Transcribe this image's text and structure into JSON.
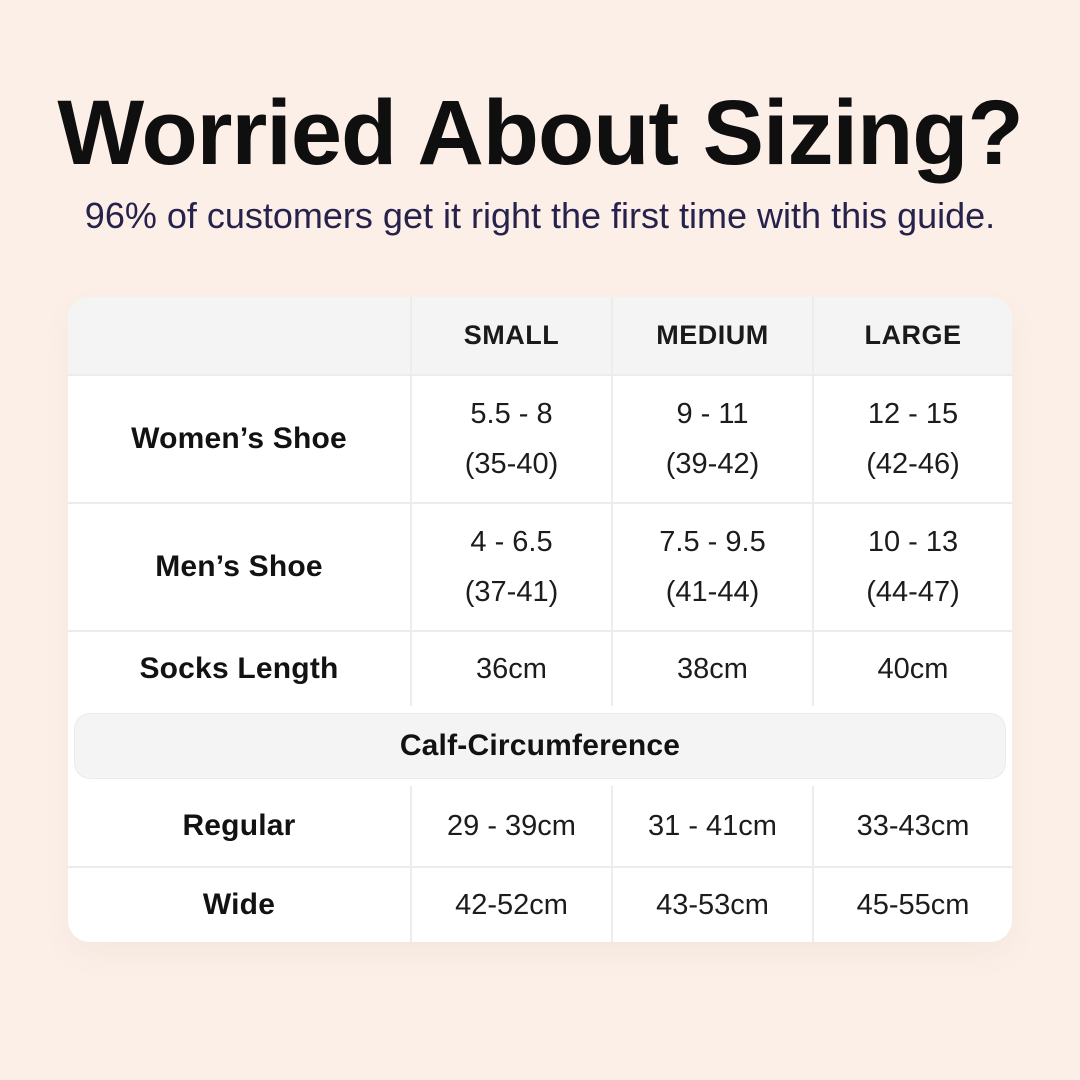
{
  "page": {
    "background_color": "#FBEFE7",
    "title": "Worried About Sizing?",
    "title_color": "#0F0F0F",
    "subtitle": "96% of customers get it right the first time with this guide.",
    "subtitle_color": "#26224C"
  },
  "table": {
    "columns": {
      "label": "",
      "small": "SMALL",
      "medium": "MEDIUM",
      "large": "LARGE"
    },
    "shoe_rows": [
      {
        "label": "Women’s Shoe",
        "small": [
          "5.5 - 8",
          "(35-40)"
        ],
        "medium": [
          "9 - 11",
          "(39-42)"
        ],
        "large": [
          "12 - 15",
          "(42-46)"
        ]
      },
      {
        "label": "Men’s Shoe",
        "small": [
          "4 - 6.5",
          "(37-41)"
        ],
        "medium": [
          "7.5 - 9.5",
          "(41-44)"
        ],
        "large": [
          "10 - 13",
          "(44-47)"
        ]
      },
      {
        "label": "Socks Length",
        "small": [
          "36cm"
        ],
        "medium": [
          "38cm"
        ],
        "large": [
          "40cm"
        ]
      }
    ],
    "section_header": "Calf-Circumference",
    "calf_rows": [
      {
        "label": "Regular",
        "small": [
          "29 - 39cm"
        ],
        "medium": [
          "31 - 41cm"
        ],
        "large": [
          "33-43cm"
        ]
      },
      {
        "label": "Wide",
        "small": [
          "42-52cm"
        ],
        "medium": [
          "43-53cm"
        ],
        "large": [
          "45-55cm"
        ]
      }
    ],
    "header_bg": "#F5F4F4",
    "divider_color": "#EDECEA",
    "table_bg": "#FFFFFF"
  },
  "chart_data": {
    "type": "table",
    "title": "Worried About Sizing?",
    "subtitle": "96% of customers get it right the first time with this guide.",
    "columns": [
      "",
      "SMALL",
      "MEDIUM",
      "LARGE"
    ],
    "rows": [
      [
        "Women’s Shoe",
        "5.5 - 8 (35-40)",
        "9 - 11 (39-42)",
        "12 - 15 (42-46)"
      ],
      [
        "Men’s Shoe",
        "4 - 6.5 (37-41)",
        "7.5 - 9.5 (41-44)",
        "10 - 13 (44-47)"
      ],
      [
        "Socks Length",
        "36cm",
        "38cm",
        "40cm"
      ],
      [
        "Calf-Circumference",
        "",
        "",
        ""
      ],
      [
        "Regular",
        "29 - 39cm",
        "31 - 41cm",
        "33-43cm"
      ],
      [
        "Wide",
        "42-52cm",
        "43-53cm",
        "45-55cm"
      ]
    ]
  }
}
